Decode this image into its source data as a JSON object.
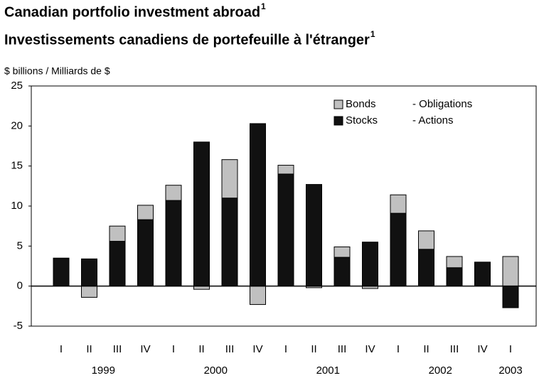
{
  "chart_data": {
    "type": "bar",
    "stacked": true,
    "title": "Canadian portfolio investment abroad",
    "title_note": "1",
    "subtitle": "Investissements canadiens de portefeuille à l'étranger",
    "subtitle_note": "1",
    "y_label": "$ billions /  Milliards de $",
    "categories": [
      "I",
      "II",
      "III",
      "IV",
      "I",
      "II",
      "III",
      "IV",
      "I",
      "II",
      "III",
      "IV",
      "I",
      "II",
      "III",
      "IV",
      "I"
    ],
    "category_groups": [
      {
        "label": "1999",
        "count": 4
      },
      {
        "label": "2000",
        "count": 4
      },
      {
        "label": "2001",
        "count": 4
      },
      {
        "label": "2002",
        "count": 4
      },
      {
        "label": "2003",
        "count": 1
      }
    ],
    "series": [
      {
        "name": "Stocks",
        "name_fr": "- Actions",
        "color": "#111111",
        "values": [
          3.5,
          3.4,
          5.6,
          8.3,
          10.7,
          18.0,
          11.0,
          20.3,
          14.0,
          12.7,
          3.6,
          5.5,
          9.1,
          4.6,
          2.3,
          3.0,
          -2.7
        ]
      },
      {
        "name": "Bonds",
        "name_fr": "- Obligations",
        "color": "#c0c0c0",
        "values": [
          0,
          -1.4,
          1.9,
          1.8,
          1.9,
          -0.4,
          4.8,
          -2.3,
          1.1,
          -0.2,
          1.3,
          -0.3,
          2.3,
          2.3,
          1.4,
          0,
          3.7
        ]
      }
    ],
    "ylim": [
      -5,
      25
    ],
    "yticks": [
      -5,
      0,
      5,
      10,
      15,
      20,
      25
    ],
    "grid": false,
    "legend": "top-right"
  }
}
